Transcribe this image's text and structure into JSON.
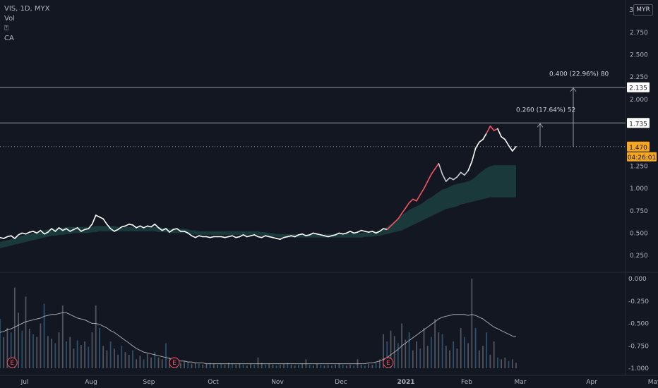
{
  "legend": {
    "symbol": "VIS, 1D, MYX",
    "vol": "Vol",
    "glyph": "⍰",
    "ca": "CA"
  },
  "currency_button": "MYR",
  "price_scale_top": "3",
  "chart_data": {
    "type": "line",
    "price_axis_ticks": [
      "2.750",
      "2.500",
      "2.250",
      "2.000",
      "1.250",
      "1.000",
      "0.750",
      "0.500",
      "0.250"
    ],
    "volume_axis_ticks": [
      "0.000",
      "-0.250",
      "-0.500",
      "-0.750",
      "-1.000"
    ],
    "x_ticks": [
      "Jul",
      "Aug",
      "Sep",
      "Oct",
      "Nov",
      "Dec",
      "2021",
      "Feb",
      "Mar",
      "Apr",
      "May"
    ],
    "last_price": "1.470",
    "countdown": "04:26:01",
    "levels": [
      {
        "value": 2.135,
        "label": "2.135",
        "measure": "0.400 (22.96%) 80"
      },
      {
        "value": 1.735,
        "label": "1.735",
        "measure": "0.260 (17.64%) 52"
      }
    ],
    "price_series": [
      0.45,
      0.44,
      0.46,
      0.47,
      0.44,
      0.48,
      0.5,
      0.49,
      0.51,
      0.52,
      0.5,
      0.53,
      0.49,
      0.51,
      0.55,
      0.52,
      0.56,
      0.53,
      0.55,
      0.52,
      0.54,
      0.56,
      0.52,
      0.54,
      0.55,
      0.6,
      0.7,
      0.68,
      0.66,
      0.6,
      0.55,
      0.52,
      0.54,
      0.57,
      0.58,
      0.6,
      0.59,
      0.56,
      0.58,
      0.56,
      0.58,
      0.57,
      0.6,
      0.56,
      0.53,
      0.55,
      0.51,
      0.54,
      0.55,
      0.52,
      0.52,
      0.5,
      0.47,
      0.45,
      0.47,
      0.46,
      0.46,
      0.45,
      0.46,
      0.46,
      0.46,
      0.45,
      0.46,
      0.47,
      0.45,
      0.46,
      0.48,
      0.46,
      0.47,
      0.48,
      0.46,
      0.45,
      0.47,
      0.46,
      0.45,
      0.44,
      0.43,
      0.45,
      0.46,
      0.47,
      0.46,
      0.48,
      0.49,
      0.47,
      0.48,
      0.5,
      0.49,
      0.48,
      0.47,
      0.46,
      0.47,
      0.48,
      0.5,
      0.49,
      0.5,
      0.52,
      0.5,
      0.51,
      0.53,
      0.52,
      0.51,
      0.52,
      0.5,
      0.52,
      0.55,
      0.54,
      0.58,
      0.62,
      0.66,
      0.72,
      0.78,
      0.84,
      0.88,
      0.86,
      0.93,
      1.0,
      1.08,
      1.16,
      1.22,
      1.28,
      1.16,
      1.08,
      1.12,
      1.1,
      1.13,
      1.18,
      1.15,
      1.2,
      1.3,
      1.45,
      1.52,
      1.55,
      1.62,
      1.7,
      1.65,
      1.67,
      1.58,
      1.55,
      1.48,
      1.42,
      1.47
    ],
    "band_upper": [
      0.4,
      0.41,
      0.42,
      0.43,
      0.45,
      0.46,
      0.47,
      0.48,
      0.49,
      0.5,
      0.51,
      0.52,
      0.53,
      0.54,
      0.55,
      0.55,
      0.56,
      0.56,
      0.57,
      0.57,
      0.57,
      0.57,
      0.57,
      0.57,
      0.57,
      0.57,
      0.58,
      0.58,
      0.58,
      0.58,
      0.58,
      0.58,
      0.57,
      0.57,
      0.57,
      0.57,
      0.57,
      0.57,
      0.57,
      0.57,
      0.57,
      0.57,
      0.57,
      0.57,
      0.56,
      0.56,
      0.55,
      0.55,
      0.55,
      0.55,
      0.55,
      0.54,
      0.53,
      0.53,
      0.52,
      0.52,
      0.52,
      0.52,
      0.52,
      0.52,
      0.52,
      0.52,
      0.52,
      0.52,
      0.52,
      0.52,
      0.52,
      0.52,
      0.52,
      0.52,
      0.52,
      0.51,
      0.51,
      0.5,
      0.5,
      0.49,
      0.49,
      0.49,
      0.49,
      0.49,
      0.49,
      0.49,
      0.49,
      0.49,
      0.49,
      0.49,
      0.49,
      0.49,
      0.49,
      0.49,
      0.49,
      0.49,
      0.49,
      0.49,
      0.5,
      0.5,
      0.5,
      0.5,
      0.5,
      0.51,
      0.51,
      0.51,
      0.52,
      0.53,
      0.55,
      0.57,
      0.6,
      0.63,
      0.66,
      0.7,
      0.73,
      0.76,
      0.78,
      0.8,
      0.82,
      0.85,
      0.88,
      0.9,
      0.93,
      0.96,
      0.99,
      1.0,
      1.02,
      1.04,
      1.05,
      1.06,
      1.07,
      1.08,
      1.1,
      1.13,
      1.17,
      1.2,
      1.23,
      1.25,
      1.26,
      1.26,
      1.26,
      1.26,
      1.26,
      1.26,
      1.26
    ],
    "band_lower": [
      0.33,
      0.34,
      0.35,
      0.36,
      0.37,
      0.38,
      0.39,
      0.4,
      0.41,
      0.42,
      0.43,
      0.44,
      0.45,
      0.46,
      0.47,
      0.47,
      0.48,
      0.48,
      0.49,
      0.49,
      0.5,
      0.5,
      0.5,
      0.5,
      0.5,
      0.51,
      0.51,
      0.52,
      0.52,
      0.52,
      0.52,
      0.52,
      0.52,
      0.52,
      0.52,
      0.52,
      0.52,
      0.52,
      0.52,
      0.52,
      0.52,
      0.52,
      0.52,
      0.51,
      0.51,
      0.51,
      0.5,
      0.5,
      0.5,
      0.5,
      0.5,
      0.49,
      0.49,
      0.48,
      0.48,
      0.48,
      0.48,
      0.48,
      0.48,
      0.48,
      0.48,
      0.48,
      0.48,
      0.48,
      0.48,
      0.48,
      0.48,
      0.48,
      0.48,
      0.48,
      0.48,
      0.47,
      0.47,
      0.46,
      0.46,
      0.46,
      0.45,
      0.45,
      0.45,
      0.45,
      0.45,
      0.45,
      0.45,
      0.45,
      0.45,
      0.45,
      0.45,
      0.45,
      0.45,
      0.45,
      0.45,
      0.45,
      0.45,
      0.45,
      0.45,
      0.45,
      0.45,
      0.45,
      0.45,
      0.46,
      0.46,
      0.46,
      0.47,
      0.47,
      0.48,
      0.49,
      0.5,
      0.51,
      0.52,
      0.53,
      0.55,
      0.57,
      0.59,
      0.61,
      0.63,
      0.65,
      0.67,
      0.69,
      0.71,
      0.73,
      0.75,
      0.77,
      0.78,
      0.79,
      0.8,
      0.82,
      0.83,
      0.84,
      0.85,
      0.86,
      0.87,
      0.88,
      0.89,
      0.9,
      0.9,
      0.9,
      0.9,
      0.9,
      0.9,
      0.9,
      0.9
    ],
    "volume_series": [
      0.55,
      0.35,
      0.45,
      0.4,
      0.9,
      0.62,
      0.42,
      0.8,
      0.44,
      0.38,
      0.35,
      0.5,
      0.72,
      0.36,
      0.33,
      0.28,
      0.4,
      0.7,
      0.3,
      0.35,
      0.22,
      0.31,
      0.26,
      0.3,
      0.24,
      0.4,
      0.7,
      0.45,
      0.25,
      0.2,
      0.3,
      0.22,
      0.15,
      0.25,
      0.18,
      0.15,
      0.2,
      0.1,
      0.14,
      0.1,
      0.16,
      0.12,
      0.18,
      0.12,
      0.1,
      0.28,
      0.12,
      0.08,
      0.1,
      0.06,
      0.08,
      0.07,
      0.05,
      0.06,
      0.05,
      0.04,
      0.05,
      0.06,
      0.05,
      0.04,
      0.05,
      0.04,
      0.06,
      0.05,
      0.04,
      0.05,
      0.04,
      0.03,
      0.05,
      0.04,
      0.12,
      0.06,
      0.04,
      0.05,
      0.04,
      0.03,
      0.04,
      0.05,
      0.06,
      0.04,
      0.03,
      0.04,
      0.05,
      0.1,
      0.04,
      0.03,
      0.05,
      0.04,
      0.03,
      0.04,
      0.03,
      0.04,
      0.05,
      0.04,
      0.03,
      0.04,
      0.03,
      0.1,
      0.04,
      0.03,
      0.05,
      0.04,
      0.06,
      0.1,
      0.38,
      0.3,
      0.42,
      0.36,
      0.28,
      0.5,
      0.32,
      0.4,
      0.2,
      0.3,
      0.22,
      0.45,
      0.25,
      0.35,
      0.55,
      0.4,
      0.38,
      0.25,
      0.2,
      0.3,
      0.22,
      0.45,
      0.35,
      0.28,
      1.0,
      0.45,
      0.2,
      0.25,
      0.4,
      0.15,
      0.3,
      0.12,
      0.1,
      0.12,
      0.08,
      0.1,
      0.06
    ],
    "volume_ma": [
      0.4,
      0.41,
      0.43,
      0.44,
      0.46,
      0.48,
      0.5,
      0.52,
      0.53,
      0.54,
      0.55,
      0.56,
      0.58,
      0.59,
      0.6,
      0.6,
      0.61,
      0.62,
      0.62,
      0.6,
      0.58,
      0.56,
      0.55,
      0.54,
      0.52,
      0.5,
      0.5,
      0.49,
      0.47,
      0.45,
      0.42,
      0.4,
      0.37,
      0.34,
      0.31,
      0.28,
      0.25,
      0.22,
      0.2,
      0.18,
      0.17,
      0.16,
      0.15,
      0.14,
      0.13,
      0.12,
      0.11,
      0.1,
      0.09,
      0.08,
      0.08,
      0.07,
      0.07,
      0.06,
      0.06,
      0.06,
      0.05,
      0.05,
      0.05,
      0.05,
      0.05,
      0.05,
      0.05,
      0.05,
      0.05,
      0.05,
      0.05,
      0.05,
      0.05,
      0.05,
      0.05,
      0.05,
      0.05,
      0.05,
      0.05,
      0.05,
      0.05,
      0.05,
      0.05,
      0.05,
      0.05,
      0.05,
      0.05,
      0.05,
      0.05,
      0.05,
      0.05,
      0.05,
      0.05,
      0.05,
      0.05,
      0.05,
      0.05,
      0.05,
      0.05,
      0.05,
      0.05,
      0.05,
      0.05,
      0.05,
      0.06,
      0.06,
      0.07,
      0.08,
      0.1,
      0.12,
      0.15,
      0.18,
      0.21,
      0.25,
      0.28,
      0.31,
      0.34,
      0.37,
      0.4,
      0.43,
      0.46,
      0.49,
      0.52,
      0.55,
      0.57,
      0.58,
      0.59,
      0.6,
      0.6,
      0.6,
      0.6,
      0.59,
      0.6,
      0.59,
      0.57,
      0.55,
      0.52,
      0.49,
      0.46,
      0.44,
      0.42,
      0.4,
      0.38,
      0.36,
      0.35
    ],
    "earnings_markers": [
      {
        "label": "E",
        "index": 1
      },
      {
        "label": "E",
        "index": 45
      },
      {
        "label": "E",
        "index": 103
      }
    ],
    "colors": {
      "background": "#131722",
      "line": "#ffffff",
      "up_segment": "#f7525f",
      "band": "#1c3d3d",
      "volume": "#5d606b",
      "last_price_label": "#f5a623",
      "level_line": "#9598a1"
    }
  }
}
